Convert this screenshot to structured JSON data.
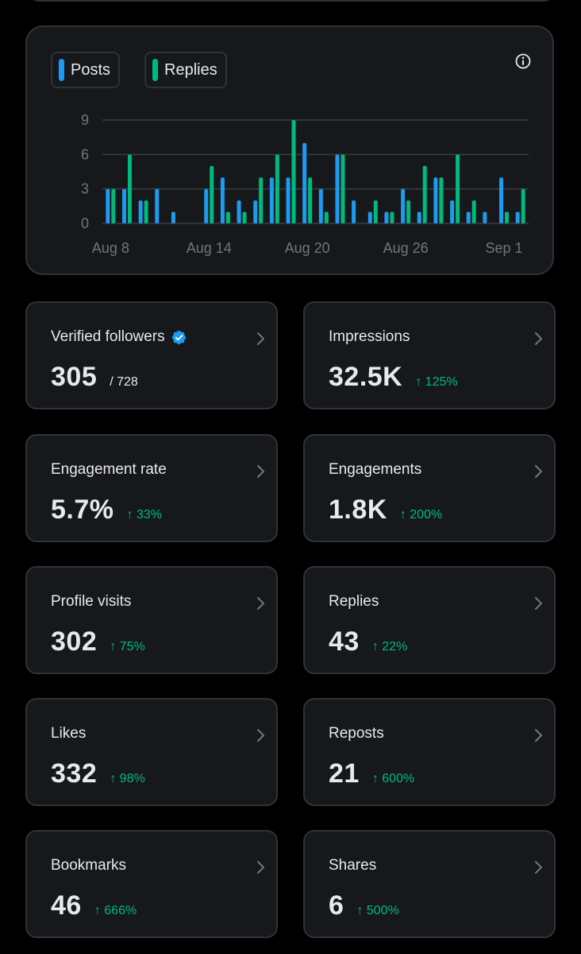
{
  "colors": {
    "posts": "#1d9bf0",
    "replies": "#00ba7c",
    "verified": "#1d9bf0",
    "positive_change": "#00ba7c",
    "card_background": "#16181c",
    "border": "#2f3336",
    "muted_text": "#71767b"
  },
  "legend": [
    {
      "label": "Posts",
      "color": "#1d9bf0"
    },
    {
      "label": "Replies",
      "color": "#00ba7c"
    }
  ],
  "chart_data": {
    "type": "bar",
    "x_tick_labels": [
      "Aug 8",
      "Aug 14",
      "Aug 20",
      "Aug 26",
      "Sep 1"
    ],
    "y_ticks": [
      0,
      3,
      6,
      9
    ],
    "ylim": [
      0,
      9
    ],
    "grid": true,
    "categories": [
      "Aug 8",
      "Aug 9",
      "Aug 10",
      "Aug 11",
      "Aug 12",
      "Aug 13",
      "Aug 14",
      "Aug 15",
      "Aug 16",
      "Aug 17",
      "Aug 18",
      "Aug 19",
      "Aug 20",
      "Aug 21",
      "Aug 22",
      "Aug 23",
      "Aug 24",
      "Aug 25",
      "Aug 26",
      "Aug 27",
      "Aug 28",
      "Aug 29",
      "Aug 30",
      "Aug 31",
      "Sep 1",
      "Sep 2"
    ],
    "series": [
      {
        "name": "Posts",
        "values": [
          3,
          3,
          2,
          3,
          1,
          0,
          3,
          4,
          2,
          2,
          4,
          4,
          7,
          3,
          6,
          2,
          1,
          1,
          3,
          1,
          4,
          2,
          1,
          1,
          4,
          1
        ]
      },
      {
        "name": "Replies",
        "values": [
          3,
          6,
          2,
          0,
          0,
          0,
          5,
          1,
          1,
          4,
          6,
          9,
          4,
          1,
          6,
          0,
          2,
          1,
          2,
          5,
          4,
          6,
          2,
          0,
          1,
          3
        ]
      }
    ]
  },
  "metrics": [
    {
      "label": "Verified followers",
      "value": "305",
      "sub": "/ 728",
      "verified": true
    },
    {
      "label": "Impressions",
      "value": "32.5K",
      "change": "↑ 125%"
    },
    {
      "label": "Engagement rate",
      "value": "5.7%",
      "change": "↑ 33%"
    },
    {
      "label": "Engagements",
      "value": "1.8K",
      "change": "↑ 200%"
    },
    {
      "label": "Profile visits",
      "value": "302",
      "change": "↑ 75%"
    },
    {
      "label": "Replies",
      "value": "43",
      "change": "↑ 22%"
    },
    {
      "label": "Likes",
      "value": "332",
      "change": "↑ 98%"
    },
    {
      "label": "Reposts",
      "value": "21",
      "change": "↑ 600%"
    },
    {
      "label": "Bookmarks",
      "value": "46",
      "change": "↑ 666%"
    },
    {
      "label": "Shares",
      "value": "6",
      "change": "↑ 500%"
    }
  ]
}
